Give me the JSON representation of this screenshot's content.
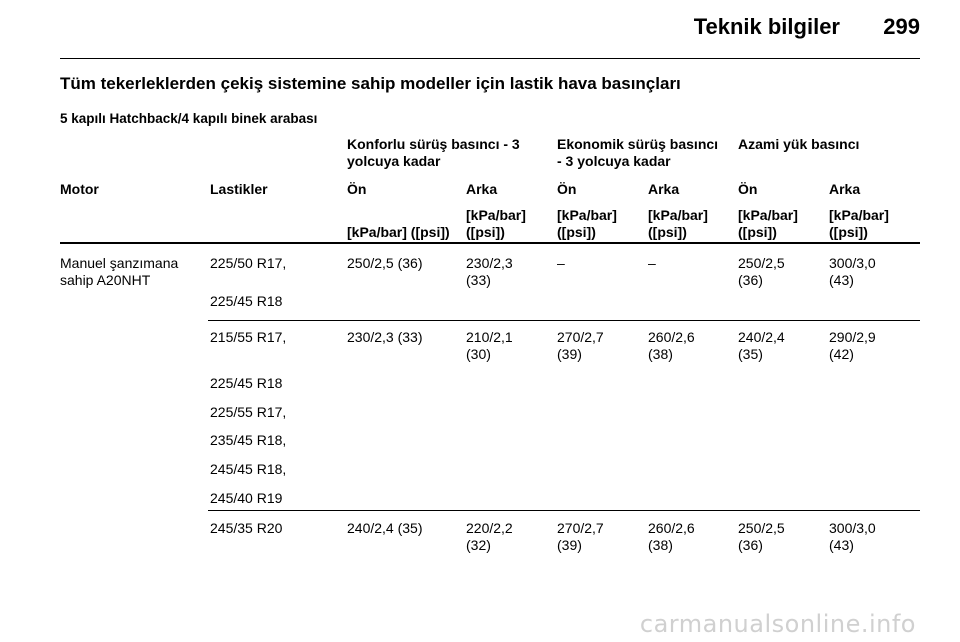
{
  "header": {
    "title": "Teknik bilgiler",
    "page": "299"
  },
  "section_title": "Tüm tekerleklerden çekiş sistemine sahip modeller için lastik hava basınçları",
  "subtitle": "5 kapılı Hatchback/4 kapılı binek arabası",
  "groups": {
    "comfort": [
      "Konforlu sürüş basıncı - 3",
      "yolcuya kadar"
    ],
    "eco": [
      "Ekonomik sürüş basıncı",
      "- 3 yolcuya kadar"
    ],
    "max": "Azami yük basıncı"
  },
  "columns": {
    "motor": "Motor",
    "tyres": "Lastikler",
    "c1": "Ön",
    "c2": "Arka",
    "c3": "Ön",
    "c4": "Arka",
    "c5": "Ön",
    "c6": "Arka"
  },
  "units": {
    "c1": "[kPa/bar] ([psi])",
    "c2": [
      "[kPa/bar]",
      "([psi])"
    ],
    "c3": [
      "[kPa/bar]",
      "([psi])"
    ],
    "c4": [
      "[kPa/bar]",
      "([psi])"
    ],
    "c5": [
      "[kPa/bar]",
      "([psi])"
    ],
    "c6": [
      "[kPa/bar]",
      "([psi])"
    ]
  },
  "motor": [
    "Manuel şanzımana",
    "sahip A20NHT"
  ],
  "rows": [
    {
      "tyres": [
        "225/50 R17,",
        "225/45 R18"
      ],
      "c1": "250/2,5 (36)",
      "c2": [
        "230/2,3",
        "(33)"
      ],
      "c3": "–",
      "c4": "–",
      "c5": [
        "250/2,5",
        "(36)"
      ],
      "c6": [
        "300/3,0",
        "(43)"
      ]
    },
    {
      "tyres": [
        "215/55 R17,",
        "225/45 R18",
        "225/55 R17,",
        "235/45 R18,",
        "245/45 R18,",
        "245/40 R19"
      ],
      "c1": "230/2,3 (33)",
      "c2": [
        "210/2,1",
        "(30)"
      ],
      "c3": [
        "270/2,7",
        "(39)"
      ],
      "c4": [
        "260/2,6",
        "(38)"
      ],
      "c5": [
        "240/2,4",
        "(35)"
      ],
      "c6": [
        "290/2,9",
        "(42)"
      ]
    },
    {
      "tyres": [
        "245/35 R20"
      ],
      "c1": "240/2,4 (35)",
      "c2": [
        "220/2,2",
        "(32)"
      ],
      "c3": [
        "270/2,7",
        "(39)"
      ],
      "c4": [
        "260/2,6",
        "(38)"
      ],
      "c5": [
        "250/2,5",
        "(36)"
      ],
      "c6": [
        "300/3,0",
        "(43)"
      ]
    }
  ],
  "watermark": "carmanualsonline.info"
}
